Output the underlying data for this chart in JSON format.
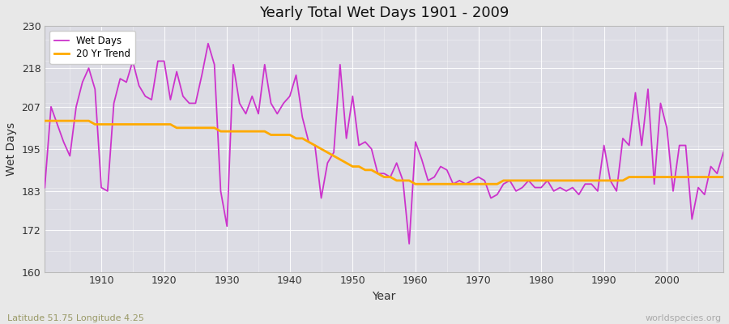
{
  "title": "Yearly Total Wet Days 1901 - 2009",
  "xlabel": "Year",
  "ylabel": "Wet Days",
  "subtitle": "Latitude 51.75 Longitude 4.25",
  "watermark": "worldspecies.org",
  "ylim": [
    160,
    230
  ],
  "yticks": [
    160,
    172,
    183,
    195,
    207,
    218,
    230
  ],
  "xlim": [
    1901,
    2009
  ],
  "xticks": [
    1910,
    1920,
    1930,
    1940,
    1950,
    1960,
    1970,
    1980,
    1990,
    2000
  ],
  "line_color": "#cc33cc",
  "trend_color": "#ffaa00",
  "fig_bg_color": "#e8e8e8",
  "plot_bg_color": "#dcdce4",
  "grid_color": "#ffffff",
  "years": [
    1901,
    1902,
    1903,
    1904,
    1905,
    1906,
    1907,
    1908,
    1909,
    1910,
    1911,
    1912,
    1913,
    1914,
    1915,
    1916,
    1917,
    1918,
    1919,
    1920,
    1921,
    1922,
    1923,
    1924,
    1925,
    1926,
    1927,
    1928,
    1929,
    1930,
    1931,
    1932,
    1933,
    1934,
    1935,
    1936,
    1937,
    1938,
    1939,
    1940,
    1941,
    1942,
    1943,
    1944,
    1945,
    1946,
    1947,
    1948,
    1949,
    1950,
    1951,
    1952,
    1953,
    1954,
    1955,
    1956,
    1957,
    1958,
    1959,
    1960,
    1961,
    1962,
    1963,
    1964,
    1965,
    1966,
    1967,
    1968,
    1969,
    1970,
    1971,
    1972,
    1973,
    1974,
    1975,
    1976,
    1977,
    1978,
    1979,
    1980,
    1981,
    1982,
    1983,
    1984,
    1985,
    1986,
    1987,
    1988,
    1989,
    1990,
    1991,
    1992,
    1993,
    1994,
    1995,
    1996,
    1997,
    1998,
    1999,
    2000,
    2001,
    2002,
    2003,
    2004,
    2005,
    2006,
    2007,
    2008,
    2009
  ],
  "wet_days": [
    184,
    207,
    202,
    197,
    193,
    207,
    214,
    218,
    212,
    184,
    183,
    208,
    215,
    214,
    220,
    213,
    210,
    209,
    220,
    220,
    209,
    217,
    210,
    208,
    208,
    216,
    225,
    219,
    183,
    173,
    219,
    208,
    205,
    210,
    205,
    219,
    208,
    205,
    208,
    210,
    216,
    204,
    197,
    196,
    181,
    191,
    194,
    219,
    198,
    210,
    196,
    197,
    195,
    188,
    188,
    187,
    191,
    186,
    168,
    197,
    192,
    186,
    187,
    190,
    189,
    185,
    186,
    185,
    186,
    187,
    186,
    181,
    182,
    185,
    186,
    183,
    184,
    186,
    184,
    184,
    186,
    183,
    184,
    183,
    184,
    182,
    185,
    185,
    183,
    196,
    186,
    183,
    198,
    196,
    211,
    196,
    212,
    185,
    208,
    201,
    183,
    196,
    196,
    175,
    184,
    182,
    190,
    188,
    194
  ],
  "trend": [
    203,
    203,
    203,
    203,
    203,
    203,
    203,
    203,
    202,
    202,
    202,
    202,
    202,
    202,
    202,
    202,
    202,
    202,
    202,
    202,
    202,
    201,
    201,
    201,
    201,
    201,
    201,
    201,
    200,
    200,
    200,
    200,
    200,
    200,
    200,
    200,
    199,
    199,
    199,
    199,
    198,
    198,
    197,
    196,
    195,
    194,
    193,
    192,
    191,
    190,
    190,
    189,
    189,
    188,
    187,
    187,
    186,
    186,
    186,
    185,
    185,
    185,
    185,
    185,
    185,
    185,
    185,
    185,
    185,
    185,
    185,
    185,
    185,
    186,
    186,
    186,
    186,
    186,
    186,
    186,
    186,
    186,
    186,
    186,
    186,
    186,
    186,
    186,
    186,
    186,
    186,
    186,
    186,
    187,
    187,
    187,
    187,
    187,
    187,
    187,
    187,
    187,
    187,
    187,
    187,
    187,
    187,
    187,
    187
  ]
}
